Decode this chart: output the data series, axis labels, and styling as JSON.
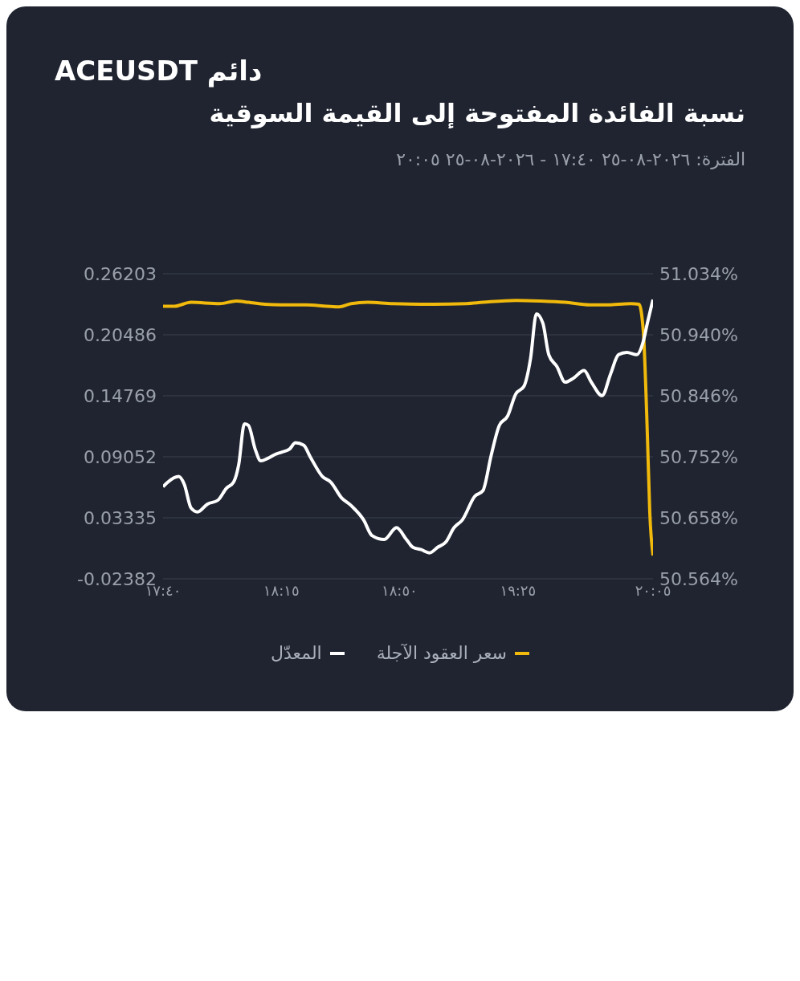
{
  "chart_data": {
    "type": "line",
    "title": "دائم ACEUSDT",
    "subtitle": "نسبة الفائدة المفتوحة إلى القيمة السوقية",
    "annotations": [
      "الفترة: ٢٠٢٦-٠٨-٢٥ ١٧:٤٠ - ٢٠٢٦-٠٨-٢٥ ٢٠:٠٥"
    ],
    "xlim": [
      17.667,
      20.083
    ],
    "xticks": [
      {
        "value": 17.667,
        "label": "١٧:٤٠"
      },
      {
        "value": 18.25,
        "label": "١٨:١٥"
      },
      {
        "value": 18.833,
        "label": "١٨:٥٠"
      },
      {
        "value": 19.417,
        "label": "١٩:٢٥"
      },
      {
        "value": 20.083,
        "label": "٢٠:٠٥"
      }
    ],
    "ylim": [
      -0.02382,
      0.26203
    ],
    "yticks": [
      -0.02382,
      0.03335,
      0.09052,
      0.14769,
      0.20486,
      0.26203
    ],
    "y2lim": [
      50.564,
      51.034
    ],
    "y2ticks": [
      {
        "value": 50.564,
        "label": "50.564%"
      },
      {
        "value": 50.658,
        "label": "50.658%"
      },
      {
        "value": 50.752,
        "label": "50.752%"
      },
      {
        "value": 50.846,
        "label": "50.846%"
      },
      {
        "value": 50.94,
        "label": "50.940%"
      },
      {
        "value": 51.034,
        "label": "51.034%"
      }
    ],
    "grid": "y",
    "legend": "bottom",
    "marker": "none",
    "line_style": "solid",
    "series": [
      {
        "name": "سعر العقود الآجلة",
        "color": "#f0b90b",
        "axis": "y2",
        "x": [
          17.667,
          17.723,
          17.805,
          17.946,
          18.028,
          18.088,
          18.169,
          18.251,
          18.372,
          18.474,
          18.535,
          18.595,
          18.676,
          18.798,
          19.001,
          19.163,
          19.244,
          19.406,
          19.528,
          19.65,
          19.771,
          19.852,
          19.974,
          20.014,
          20.035,
          20.055,
          20.067,
          20.083
        ],
        "values": [
          50.984,
          50.984,
          50.99,
          50.988,
          50.992,
          50.99,
          50.987,
          50.986,
          50.986,
          50.984,
          50.983,
          50.988,
          50.99,
          50.988,
          50.987,
          50.988,
          50.99,
          50.993,
          50.992,
          50.99,
          50.986,
          50.986,
          50.988,
          50.987,
          50.946,
          50.788,
          50.667,
          50.6
        ]
      },
      {
        "name": "المعدّل",
        "color": "#ffffff",
        "axis": "y",
        "x": [
          17.667,
          17.691,
          17.744,
          17.772,
          17.805,
          17.837,
          17.886,
          17.938,
          17.979,
          18.015,
          18.04,
          18.068,
          18.088,
          18.121,
          18.149,
          18.182,
          18.218,
          18.251,
          18.291,
          18.32,
          18.36,
          18.393,
          18.453,
          18.494,
          18.547,
          18.595,
          18.656,
          18.697,
          18.758,
          18.818,
          18.867,
          18.899,
          18.94,
          18.981,
          19.021,
          19.062,
          19.102,
          19.143,
          19.204,
          19.244,
          19.285,
          19.325,
          19.366,
          19.406,
          19.447,
          19.479,
          19.508,
          19.54,
          19.569,
          19.609,
          19.65,
          19.69,
          19.743,
          19.779,
          19.832,
          19.873,
          19.913,
          19.954,
          20.002,
          20.035,
          20.055,
          20.083
        ],
        "values": [
          0.0624,
          0.0668,
          0.072,
          0.0646,
          0.0425,
          0.0388,
          0.0462,
          0.0499,
          0.0609,
          0.0668,
          0.083,
          0.1213,
          0.1199,
          0.0978,
          0.0867,
          0.0889,
          0.0926,
          0.0948,
          0.0978,
          0.1036,
          0.1014,
          0.0904,
          0.072,
          0.0668,
          0.0521,
          0.0447,
          0.0314,
          0.0167,
          0.013,
          0.0241,
          0.013,
          0.0057,
          0.0035,
          0.0005,
          0.0057,
          0.0108,
          0.0241,
          0.0314,
          0.0535,
          0.0587,
          0.0919,
          0.1199,
          0.1287,
          0.1493,
          0.1567,
          0.1825,
          0.2245,
          0.2156,
          0.1862,
          0.1751,
          0.1604,
          0.1641,
          0.1714,
          0.1604,
          0.1478,
          0.1677,
          0.1862,
          0.1884,
          0.1862,
          0.1987,
          0.2156,
          0.2377
        ]
      }
    ]
  }
}
